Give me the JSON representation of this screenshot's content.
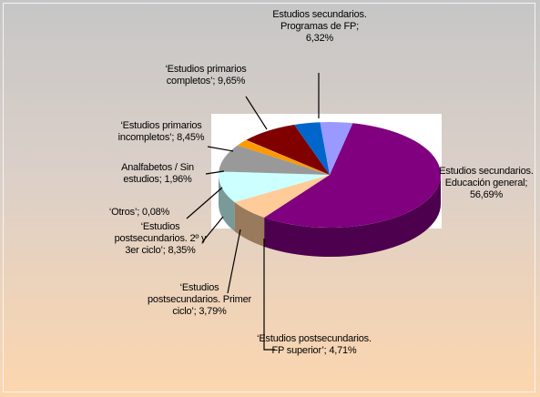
{
  "chart_data": {
    "type": "pie",
    "categories": [
      "Estudios secundarios. Educación general;",
      "Estudios secundarios. Programas de FP;",
      "‘Estudios primarios completos’;",
      "‘Estudios primarios incompletos’;",
      "Analfabetos / Sin estudios;",
      "‘Otros’;",
      "‘Estudios postsecundarios. 2º y 3er ciclo’;",
      "‘Estudios postsecundarios. Primer ciclo’;",
      "‘Estudios postsecundarios. FP superior’;"
    ],
    "values": [
      56.69,
      6.32,
      9.65,
      8.45,
      1.96,
      0.08,
      8.35,
      3.79,
      4.71
    ],
    "value_labels": [
      "56,69%",
      "6,32%",
      "9,65%",
      "8,45%",
      "1,96%",
      "0,08%",
      "8,35%",
      "3,79%",
      "4,71%"
    ],
    "colors": [
      "#800080",
      "#ffcc99",
      "#ccffff",
      "#999999",
      "#ff9900",
      "#ffffcc",
      "#800000",
      "#0066cc",
      "#9999ff"
    ]
  }
}
